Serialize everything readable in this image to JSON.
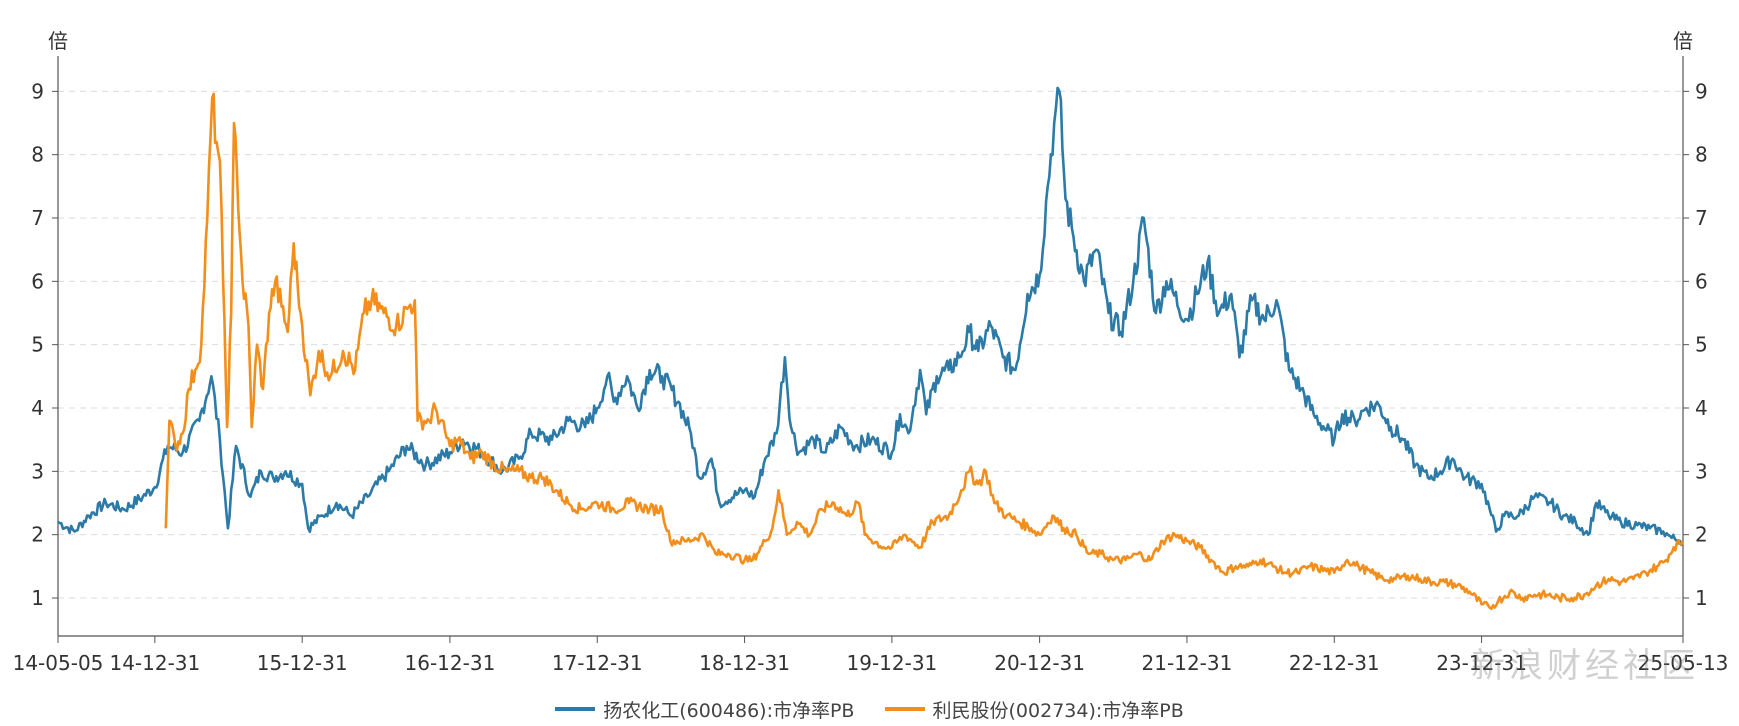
{
  "chart_data": {
    "type": "line",
    "left_unit": "倍",
    "right_unit": "倍",
    "ylim": [
      0.4,
      9.4
    ],
    "y_ticks": [
      1,
      2,
      3,
      4,
      5,
      6,
      7,
      8,
      9
    ],
    "x_tick_labels": [
      "14-05-05",
      "14-12-31",
      "15-12-31",
      "16-12-31",
      "17-12-31",
      "18-12-31",
      "19-12-31",
      "20-12-31",
      "21-12-31",
      "22-12-31",
      "23-12-31",
      "25-05-13"
    ],
    "x_tick_dates": [
      "2014-05-05",
      "2014-12-31",
      "2015-12-31",
      "2016-12-31",
      "2017-12-31",
      "2018-12-31",
      "2019-12-31",
      "2020-12-31",
      "2021-12-31",
      "2022-12-31",
      "2023-12-31",
      "2025-05-13"
    ],
    "grid": true,
    "legend_position": "bottom",
    "series": [
      {
        "name": "扬农化工(600486):市净率PB",
        "color": "#2b7aa7",
        "points": [
          [
            "2014-05-05",
            2.2
          ],
          [
            "2014-06-15",
            2.05
          ],
          [
            "2014-07-20",
            2.3
          ],
          [
            "2014-09-01",
            2.5
          ],
          [
            "2014-10-15",
            2.4
          ],
          [
            "2014-12-01",
            2.6
          ],
          [
            "2014-12-31",
            2.75
          ],
          [
            "2015-02-01",
            3.4
          ],
          [
            "2015-03-10",
            3.3
          ],
          [
            "2015-04-20",
            3.8
          ],
          [
            "2015-05-20",
            4.5
          ],
          [
            "2015-06-10",
            3.5
          ],
          [
            "2015-06-30",
            2.1
          ],
          [
            "2015-07-20",
            3.4
          ],
          [
            "2015-08-25",
            2.6
          ],
          [
            "2015-09-20",
            3.0
          ],
          [
            "2015-10-20",
            2.9
          ],
          [
            "2015-11-20",
            3.0
          ],
          [
            "2015-12-31",
            2.8
          ],
          [
            "2016-01-15",
            2.1
          ],
          [
            "2016-02-20",
            2.3
          ],
          [
            "2016-03-25",
            2.5
          ],
          [
            "2016-05-01",
            2.3
          ],
          [
            "2016-06-10",
            2.6
          ],
          [
            "2016-08-01",
            3.0
          ],
          [
            "2016-09-15",
            3.4
          ],
          [
            "2016-11-01",
            3.1
          ],
          [
            "2016-12-31",
            3.3
          ],
          [
            "2017-02-01",
            3.5
          ],
          [
            "2017-03-20",
            3.3
          ],
          [
            "2017-05-10",
            3.0
          ],
          [
            "2017-06-20",
            3.2
          ],
          [
            "2017-07-20",
            3.6
          ],
          [
            "2017-09-10",
            3.5
          ],
          [
            "2017-10-20",
            3.8
          ],
          [
            "2017-12-01",
            3.7
          ],
          [
            "2017-12-31",
            4.0
          ],
          [
            "2018-01-25",
            4.5
          ],
          [
            "2018-02-10",
            4.1
          ],
          [
            "2018-03-15",
            4.5
          ],
          [
            "2018-04-10",
            4.0
          ],
          [
            "2018-05-10",
            4.6
          ],
          [
            "2018-06-10",
            4.5
          ],
          [
            "2018-07-20",
            4.1
          ],
          [
            "2018-08-20",
            3.6
          ],
          [
            "2018-09-10",
            2.9
          ],
          [
            "2018-10-10",
            3.2
          ],
          [
            "2018-10-30",
            2.5
          ],
          [
            "2018-12-31",
            2.7
          ],
          [
            "2019-01-25",
            2.6
          ],
          [
            "2019-02-20",
            3.2
          ],
          [
            "2019-03-20",
            3.6
          ],
          [
            "2019-04-10",
            4.8
          ],
          [
            "2019-04-25",
            3.7
          ],
          [
            "2019-05-15",
            3.3
          ],
          [
            "2019-06-20",
            3.5
          ],
          [
            "2019-07-20",
            3.3
          ],
          [
            "2019-08-25",
            3.7
          ],
          [
            "2019-10-01",
            3.4
          ],
          [
            "2019-11-10",
            3.5
          ],
          [
            "2019-12-31",
            3.3
          ],
          [
            "2020-01-20",
            3.9
          ],
          [
            "2020-02-10",
            3.6
          ],
          [
            "2020-03-10",
            4.6
          ],
          [
            "2020-03-25",
            3.9
          ],
          [
            "2020-04-20",
            4.5
          ],
          [
            "2020-05-20",
            4.6
          ],
          [
            "2020-06-15",
            4.8
          ],
          [
            "2020-07-10",
            5.2
          ],
          [
            "2020-08-01",
            4.9
          ],
          [
            "2020-09-01",
            5.3
          ],
          [
            "2020-10-01",
            4.8
          ],
          [
            "2020-11-01",
            4.6
          ],
          [
            "2020-12-01",
            5.8
          ],
          [
            "2020-12-31",
            6.1
          ],
          [
            "2021-01-20",
            7.5
          ],
          [
            "2021-02-05",
            8.5
          ],
          [
            "2021-02-18",
            9.0
          ],
          [
            "2021-03-05",
            7.3
          ],
          [
            "2021-03-25",
            6.7
          ],
          [
            "2021-04-20",
            6.0
          ],
          [
            "2021-05-20",
            6.5
          ],
          [
            "2021-06-20",
            5.5
          ],
          [
            "2021-07-20",
            5.2
          ],
          [
            "2021-08-20",
            6.0
          ],
          [
            "2021-09-15",
            7.0
          ],
          [
            "2021-10-15",
            5.5
          ],
          [
            "2021-11-10",
            6.0
          ],
          [
            "2021-12-31",
            5.4
          ],
          [
            "2022-01-25",
            5.8
          ],
          [
            "2022-02-20",
            6.3
          ],
          [
            "2022-03-20",
            5.5
          ],
          [
            "2022-04-20",
            5.8
          ],
          [
            "2022-05-10",
            4.8
          ],
          [
            "2022-06-10",
            5.7
          ],
          [
            "2022-07-10",
            5.4
          ],
          [
            "2022-08-10",
            5.7
          ],
          [
            "2022-09-10",
            4.6
          ],
          [
            "2022-10-10",
            4.3
          ],
          [
            "2022-11-10",
            3.9
          ],
          [
            "2022-12-31",
            3.5
          ],
          [
            "2023-01-20",
            3.9
          ],
          [
            "2023-02-20",
            3.8
          ],
          [
            "2023-03-20",
            4.0
          ],
          [
            "2023-04-20",
            4.05
          ],
          [
            "2023-05-20",
            3.7
          ],
          [
            "2023-06-20",
            3.5
          ],
          [
            "2023-07-20",
            3.1
          ],
          [
            "2023-08-20",
            2.9
          ],
          [
            "2023-09-20",
            3.0
          ],
          [
            "2023-10-20",
            3.2
          ],
          [
            "2023-11-20",
            2.9
          ],
          [
            "2023-12-31",
            2.8
          ],
          [
            "2024-01-20",
            2.4
          ],
          [
            "2024-02-05",
            2.05
          ],
          [
            "2024-02-25",
            2.3
          ],
          [
            "2024-04-01",
            2.3
          ],
          [
            "2024-05-10",
            2.6
          ],
          [
            "2024-06-20",
            2.5
          ],
          [
            "2024-07-20",
            2.3
          ],
          [
            "2024-08-20",
            2.2
          ],
          [
            "2024-09-20",
            2.0
          ],
          [
            "2024-10-10",
            2.5
          ],
          [
            "2024-11-10",
            2.3
          ],
          [
            "2024-12-10",
            2.2
          ],
          [
            "2025-01-20",
            2.15
          ],
          [
            "2025-02-20",
            2.1
          ],
          [
            "2025-03-25",
            2.05
          ],
          [
            "2025-04-15",
            1.95
          ],
          [
            "2025-05-13",
            1.9
          ]
        ]
      },
      {
        "name": "利民股份(002734):市净率PB",
        "color": "#f28e1c",
        "points": [
          [
            "2015-01-27",
            2.1
          ],
          [
            "2015-02-05",
            3.8
          ],
          [
            "2015-02-20",
            3.4
          ],
          [
            "2015-03-10",
            3.6
          ],
          [
            "2015-03-25",
            4.3
          ],
          [
            "2015-04-10",
            4.6
          ],
          [
            "2015-04-25",
            5.0
          ],
          [
            "2015-05-10",
            7.0
          ],
          [
            "2015-05-22",
            8.9
          ],
          [
            "2015-06-02",
            8.2
          ],
          [
            "2015-06-10",
            7.9
          ],
          [
            "2015-06-18",
            6.0
          ],
          [
            "2015-06-28",
            3.7
          ],
          [
            "2015-07-08",
            5.5
          ],
          [
            "2015-07-15",
            8.5
          ],
          [
            "2015-07-22",
            7.8
          ],
          [
            "2015-08-05",
            6.0
          ],
          [
            "2015-08-20",
            5.3
          ],
          [
            "2015-08-28",
            3.7
          ],
          [
            "2015-09-10",
            5.0
          ],
          [
            "2015-09-25",
            4.3
          ],
          [
            "2015-10-10",
            5.5
          ],
          [
            "2015-10-25",
            6.0
          ],
          [
            "2015-11-10",
            5.6
          ],
          [
            "2015-11-25",
            5.2
          ],
          [
            "2015-12-10",
            6.6
          ],
          [
            "2015-12-20",
            5.9
          ],
          [
            "2015-12-31",
            5.3
          ],
          [
            "2016-01-20",
            4.2
          ],
          [
            "2016-02-10",
            4.9
          ],
          [
            "2016-03-10",
            4.5
          ],
          [
            "2016-04-10",
            4.9
          ],
          [
            "2016-05-10",
            4.6
          ],
          [
            "2016-06-01",
            5.5
          ],
          [
            "2016-06-20",
            5.7
          ],
          [
            "2016-07-20",
            5.5
          ],
          [
            "2016-08-20",
            5.3
          ],
          [
            "2016-09-20",
            5.6
          ],
          [
            "2016-10-05",
            5.7
          ],
          [
            "2016-10-12",
            3.8
          ],
          [
            "2016-11-10",
            3.8
          ],
          [
            "2016-11-25",
            4.0
          ],
          [
            "2016-12-31",
            3.4
          ],
          [
            "2017-01-20",
            3.5
          ],
          [
            "2017-02-20",
            3.2
          ],
          [
            "2017-03-20",
            3.3
          ],
          [
            "2017-04-20",
            3.1
          ],
          [
            "2017-05-20",
            3.0
          ],
          [
            "2017-06-20",
            3.0
          ],
          [
            "2017-07-20",
            2.9
          ],
          [
            "2017-08-20",
            2.9
          ],
          [
            "2017-09-20",
            2.7
          ],
          [
            "2017-10-20",
            2.5
          ],
          [
            "2017-11-20",
            2.4
          ],
          [
            "2017-12-31",
            2.5
          ],
          [
            "2018-02-10",
            2.4
          ],
          [
            "2018-03-20",
            2.5
          ],
          [
            "2018-05-10",
            2.4
          ],
          [
            "2018-06-10",
            2.4
          ],
          [
            "2018-06-30",
            1.9
          ],
          [
            "2018-08-10",
            1.9
          ],
          [
            "2018-09-20",
            2.0
          ],
          [
            "2018-10-20",
            1.7
          ],
          [
            "2018-11-20",
            1.7
          ],
          [
            "2018-12-31",
            1.6
          ],
          [
            "2019-01-20",
            1.6
          ],
          [
            "2019-02-20",
            1.9
          ],
          [
            "2019-03-10",
            2.1
          ],
          [
            "2019-03-25",
            2.7
          ],
          [
            "2019-04-15",
            2.0
          ],
          [
            "2019-05-10",
            2.2
          ],
          [
            "2019-06-10",
            2.0
          ],
          [
            "2019-07-10",
            2.4
          ],
          [
            "2019-08-10",
            2.5
          ],
          [
            "2019-09-10",
            2.3
          ],
          [
            "2019-10-10",
            2.5
          ],
          [
            "2019-10-25",
            2.0
          ],
          [
            "2019-12-10",
            1.8
          ],
          [
            "2019-12-31",
            1.8
          ],
          [
            "2020-02-01",
            2.0
          ],
          [
            "2020-03-10",
            1.8
          ],
          [
            "2020-04-10",
            2.2
          ],
          [
            "2020-05-20",
            2.3
          ],
          [
            "2020-06-20",
            2.7
          ],
          [
            "2020-07-10",
            3.0
          ],
          [
            "2020-08-01",
            2.8
          ],
          [
            "2020-08-20",
            3.0
          ],
          [
            "2020-09-10",
            2.5
          ],
          [
            "2020-10-10",
            2.3
          ],
          [
            "2020-11-10",
            2.2
          ],
          [
            "2020-12-10",
            2.1
          ],
          [
            "2020-12-31",
            2.0
          ],
          [
            "2021-02-01",
            2.3
          ],
          [
            "2021-03-01",
            2.1
          ],
          [
            "2021-04-01",
            2.0
          ],
          [
            "2021-05-01",
            1.7
          ],
          [
            "2021-06-01",
            1.7
          ],
          [
            "2021-07-01",
            1.6
          ],
          [
            "2021-08-01",
            1.6
          ],
          [
            "2021-09-01",
            1.7
          ],
          [
            "2021-10-01",
            1.6
          ],
          [
            "2021-11-01",
            1.9
          ],
          [
            "2021-12-01",
            2.0
          ],
          [
            "2021-12-31",
            1.9
          ],
          [
            "2022-02-01",
            1.8
          ],
          [
            "2022-03-01",
            1.6
          ],
          [
            "2022-04-01",
            1.4
          ],
          [
            "2022-05-01",
            1.5
          ],
          [
            "2022-06-01",
            1.5
          ],
          [
            "2022-07-01",
            1.6
          ],
          [
            "2022-08-01",
            1.5
          ],
          [
            "2022-09-01",
            1.4
          ],
          [
            "2022-10-01",
            1.4
          ],
          [
            "2022-11-01",
            1.5
          ],
          [
            "2022-12-31",
            1.4
          ],
          [
            "2023-02-01",
            1.6
          ],
          [
            "2023-03-01",
            1.5
          ],
          [
            "2023-04-01",
            1.4
          ],
          [
            "2023-05-01",
            1.3
          ],
          [
            "2023-06-01",
            1.3
          ],
          [
            "2023-07-01",
            1.35
          ],
          [
            "2023-08-01",
            1.3
          ],
          [
            "2023-09-01",
            1.25
          ],
          [
            "2023-10-01",
            1.25
          ],
          [
            "2023-11-01",
            1.2
          ],
          [
            "2023-12-01",
            1.1
          ],
          [
            "2023-12-31",
            0.9
          ],
          [
            "2024-01-20",
            0.85
          ],
          [
            "2024-02-10",
            0.95
          ],
          [
            "2024-03-10",
            1.1
          ],
          [
            "2024-04-10",
            1.0
          ],
          [
            "2024-05-10",
            1.05
          ],
          [
            "2024-06-10",
            1.05
          ],
          [
            "2024-07-10",
            1.0
          ],
          [
            "2024-08-10",
            1.0
          ],
          [
            "2024-09-10",
            1.05
          ],
          [
            "2024-10-10",
            1.2
          ],
          [
            "2024-11-10",
            1.3
          ],
          [
            "2024-12-10",
            1.25
          ],
          [
            "2025-01-10",
            1.3
          ],
          [
            "2025-02-10",
            1.4
          ],
          [
            "2025-03-10",
            1.5
          ],
          [
            "2025-04-01",
            1.6
          ],
          [
            "2025-04-20",
            1.8
          ],
          [
            "2025-05-13",
            1.9
          ]
        ]
      }
    ]
  },
  "legend": {
    "item1": "扬农化工(600486):市净率PB",
    "item2": "利民股份(002734):市净率PB"
  },
  "watermark": {
    "text": "新浪财经社区"
  }
}
